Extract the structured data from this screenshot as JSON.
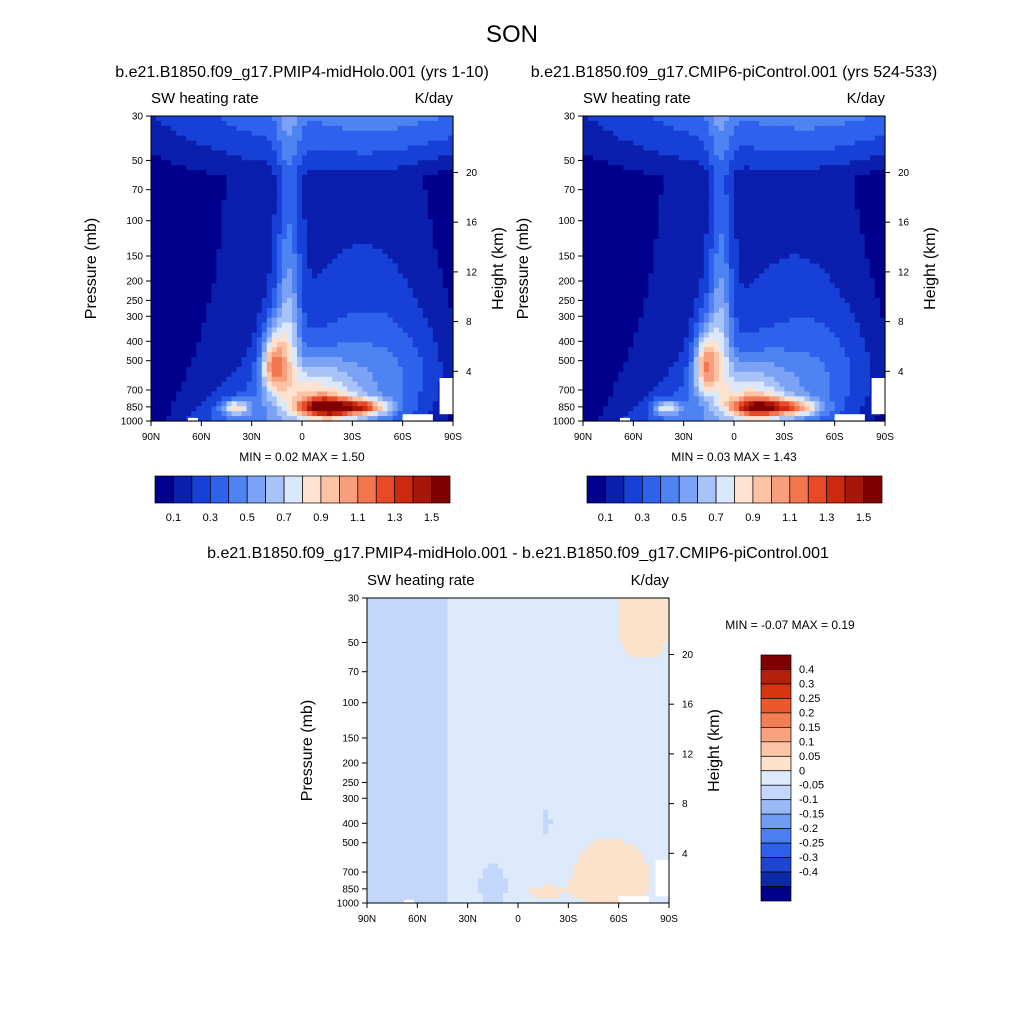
{
  "figure": {
    "title": "SON"
  },
  "colors": {
    "panel_scale": [
      "#00008c",
      "#0a1fae",
      "#1740d6",
      "#2e62ec",
      "#4f83f2",
      "#7ba2f4",
      "#a8c3f7",
      "#dbe8fb",
      "#fde3cf",
      "#fcc3a4",
      "#f89e7d",
      "#f4764f",
      "#e84a26",
      "#cc2a0e",
      "#a8150a",
      "#800000"
    ],
    "diff_scale": [
      "#00008c",
      "#0b2aa8",
      "#1c46cf",
      "#2e5fea",
      "#4c7ef2",
      "#719cf4",
      "#98b9f6",
      "#c2d7fa",
      "#ddeafb",
      "#fde2cb",
      "#fbc5a6",
      "#f8a27f",
      "#f37d54",
      "#ea582d",
      "#d4360f",
      "#b3200b",
      "#800000"
    ]
  },
  "chart_data": [
    {
      "type": "contour",
      "title": "b.e21.B1850.f09_g17.PMIP4-midHolo.001 (yrs 1-10)",
      "left_label": "SW heating rate",
      "right_label": "K/day",
      "xlabel": "",
      "ylabel": "Pressure (mb)",
      "ylabel_right": "Height (km)",
      "x_ticks": [
        "90N",
        "60N",
        "30N",
        "0",
        "30S",
        "60S",
        "90S"
      ],
      "x_tick_values": [
        90,
        60,
        30,
        0,
        -30,
        -60,
        -90
      ],
      "y_ticks": [
        "30",
        "50",
        "70",
        "100",
        "150",
        "200",
        "250",
        "300",
        "400",
        "500",
        "700",
        "850",
        "1000"
      ],
      "y_tick_values": [
        30,
        50,
        70,
        100,
        150,
        200,
        250,
        300,
        400,
        500,
        700,
        850,
        1000
      ],
      "height_ticks": [
        "20",
        "16",
        "12",
        "8",
        "4"
      ],
      "height_tick_values": [
        20,
        16,
        12,
        8,
        4
      ],
      "ylim": [
        1000,
        30
      ],
      "xlim": [
        90,
        -90
      ],
      "stats": "MIN =   0.02  MAX =   1.50",
      "field": {
        "base": 0.22,
        "surface_heat": 0.28,
        "blobs": [
          {
            "lat": -15,
            "p": 860,
            "amp": 1.05,
            "slat": 12,
            "sp": 70
          },
          {
            "lat": -38,
            "p": 855,
            "amp": 0.65,
            "slat": 10,
            "sp": 55
          },
          {
            "lat": 17,
            "p": 520,
            "amp": 0.75,
            "slat": 5,
            "sp": 130
          },
          {
            "lat": 8,
            "p": 350,
            "amp": 0.45,
            "slat": 5,
            "sp": 230
          },
          {
            "lat": 40,
            "p": 860,
            "amp": 0.55,
            "slat": 6,
            "sp": 50
          },
          {
            "lat": -5,
            "p": 700,
            "amp": 0.45,
            "slat": 18,
            "sp": 160
          },
          {
            "lat": -50,
            "p": 550,
            "amp": 0.28,
            "slat": 30,
            "sp": 280
          }
        ]
      },
      "colorbar": {
        "levels": [
          0.1,
          0.2,
          0.3,
          0.4,
          0.5,
          0.6,
          0.7,
          0.8,
          0.9,
          1.0,
          1.1,
          1.2,
          1.3,
          1.4,
          1.5
        ],
        "labels": [
          "0.1",
          "0.3",
          "0.5",
          "0.7",
          "0.9",
          "1.1",
          "1.3",
          "1.5"
        ],
        "orientation": "horizontal"
      }
    },
    {
      "type": "contour",
      "title": "b.e21.B1850.f09_g17.CMIP6-piControl.001 (yrs 524-533)",
      "left_label": "SW heating rate",
      "right_label": "K/day",
      "xlabel": "",
      "ylabel": "Pressure (mb)",
      "ylabel_right": "Height (km)",
      "x_ticks": [
        "90N",
        "60N",
        "30N",
        "0",
        "30S",
        "60S",
        "90S"
      ],
      "x_tick_values": [
        90,
        60,
        30,
        0,
        -30,
        -60,
        -90
      ],
      "y_ticks": [
        "30",
        "50",
        "70",
        "100",
        "150",
        "200",
        "250",
        "300",
        "400",
        "500",
        "700",
        "850",
        "1000"
      ],
      "y_tick_values": [
        30,
        50,
        70,
        100,
        150,
        200,
        250,
        300,
        400,
        500,
        700,
        850,
        1000
      ],
      "height_ticks": [
        "20",
        "16",
        "12",
        "8",
        "4"
      ],
      "height_tick_values": [
        20,
        16,
        12,
        8,
        4
      ],
      "ylim": [
        1000,
        30
      ],
      "xlim": [
        90,
        -90
      ],
      "stats": "MIN =   0.03  MAX =   1.43",
      "field": {
        "base": 0.21,
        "surface_heat": 0.26,
        "blobs": [
          {
            "lat": -15,
            "p": 860,
            "amp": 0.95,
            "slat": 12,
            "sp": 70
          },
          {
            "lat": -38,
            "p": 855,
            "amp": 0.55,
            "slat": 10,
            "sp": 55
          },
          {
            "lat": 17,
            "p": 520,
            "amp": 0.7,
            "slat": 5,
            "sp": 130
          },
          {
            "lat": 8,
            "p": 350,
            "amp": 0.42,
            "slat": 5,
            "sp": 230
          },
          {
            "lat": 40,
            "p": 860,
            "amp": 0.5,
            "slat": 6,
            "sp": 50
          },
          {
            "lat": -5,
            "p": 700,
            "amp": 0.4,
            "slat": 18,
            "sp": 160
          },
          {
            "lat": -50,
            "p": 550,
            "amp": 0.26,
            "slat": 30,
            "sp": 280
          }
        ]
      },
      "colorbar": {
        "levels": [
          0.1,
          0.2,
          0.3,
          0.4,
          0.5,
          0.6,
          0.7,
          0.8,
          0.9,
          1.0,
          1.1,
          1.2,
          1.3,
          1.4,
          1.5
        ],
        "labels": [
          "0.1",
          "0.3",
          "0.5",
          "0.7",
          "0.9",
          "1.1",
          "1.3",
          "1.5"
        ],
        "orientation": "horizontal"
      }
    },
    {
      "type": "contour",
      "title": "b.e21.B1850.f09_g17.PMIP4-midHolo.001 - b.e21.B1850.f09_g17.CMIP6-piControl.001",
      "left_label": "SW heating rate",
      "right_label": "K/day",
      "xlabel": "",
      "ylabel": "Pressure (mb)",
      "ylabel_right": "Height (km)",
      "x_ticks": [
        "90N",
        "60N",
        "30N",
        "0",
        "30S",
        "60S",
        "90S"
      ],
      "x_tick_values": [
        90,
        60,
        30,
        0,
        -30,
        -60,
        -90
      ],
      "y_ticks": [
        "30",
        "50",
        "70",
        "100",
        "150",
        "200",
        "250",
        "300",
        "400",
        "500",
        "700",
        "850",
        "1000"
      ],
      "y_tick_values": [
        30,
        50,
        70,
        100,
        150,
        200,
        250,
        300,
        400,
        500,
        700,
        850,
        1000
      ],
      "height_ticks": [
        "20",
        "16",
        "12",
        "8",
        "4"
      ],
      "height_tick_values": [
        20,
        16,
        12,
        8,
        4
      ],
      "ylim": [
        1000,
        30
      ],
      "xlim": [
        90,
        -90
      ],
      "stats": "MIN =  -0.07  MAX =   0.19",
      "field": {
        "regions": [
          {
            "lat_north": 90,
            "lat_south": 42,
            "value": -0.02
          },
          {
            "lat_north": 42,
            "lat_south": -90,
            "value": 0.02
          }
        ],
        "blobs": [
          {
            "lat": -55,
            "p": 760,
            "amp": 0.07,
            "slat": 18,
            "sp": 220
          },
          {
            "lat": -15,
            "p": 880,
            "amp": 0.05,
            "slat": 8,
            "sp": 50
          },
          {
            "lat": -75,
            "p": 40,
            "amp": 0.05,
            "slat": 15,
            "sp": 20
          },
          {
            "lat": 15,
            "p": 830,
            "amp": -0.05,
            "slat": 6,
            "sp": 140
          },
          {
            "lat": -17,
            "p": 400,
            "amp": -0.05,
            "slat": 2,
            "sp": 40
          }
        ]
      },
      "colorbar": {
        "levels": [
          -0.4,
          -0.3,
          -0.25,
          -0.2,
          -0.15,
          -0.1,
          -0.05,
          0,
          0.05,
          0.1,
          0.15,
          0.2,
          0.25,
          0.3,
          0.4
        ],
        "labels": [
          "0.4",
          "0.3",
          "0.25",
          "0.2",
          "0.15",
          "0.1",
          "0.05",
          "0",
          "-0.05",
          "-0.1",
          "-0.15",
          "-0.2",
          "-0.25",
          "-0.3",
          "-0.4"
        ],
        "orientation": "vertical"
      }
    }
  ]
}
